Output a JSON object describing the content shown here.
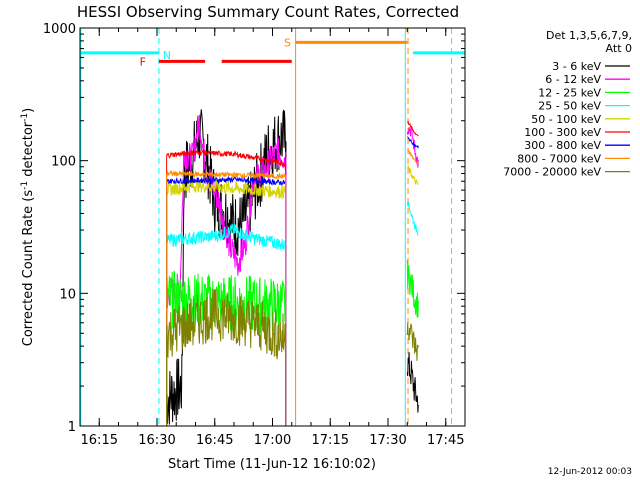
{
  "chart_data": {
    "type": "line",
    "title": "HESSI Observing Summary Count Rates, Corrected",
    "xlabel": "Start Time (11-Jun-12 16:10:02)",
    "ylabel_main": "Corrected Count Rate (s",
    "ylabel_sup1": "-1",
    "ylabel_mid": " detector",
    "ylabel_sup2": "-1",
    "ylabel_end": ")",
    "x_ticks": [
      "16:15",
      "16:30",
      "16:45",
      "17:00",
      "17:15",
      "17:30",
      "17:45"
    ],
    "x_tick_minutes": [
      5,
      20,
      35,
      50,
      65,
      80,
      95
    ],
    "xlim_minutes": [
      0,
      100
    ],
    "y_ticks": [
      "1",
      "10",
      "100",
      "1000"
    ],
    "y_tick_values": [
      1,
      10,
      100,
      1000
    ],
    "ylim": [
      1,
      1000
    ],
    "yscale": "log",
    "footer_date": "12-Jun-2012 00:03",
    "legend": {
      "header1": "Det 1,3,5,6,7,9,",
      "header2": "Att 0",
      "placement": "right of plot"
    },
    "series": [
      {
        "name": "3 - 6 keV",
        "color": "#000000",
        "base": 1.6,
        "noise": 0.25,
        "pts": [
          [
            22.5,
            1.6
          ],
          [
            26.5,
            2
          ],
          [
            27,
            80
          ],
          [
            29,
            100
          ],
          [
            31,
            160
          ],
          [
            33,
            100
          ],
          [
            35,
            50
          ],
          [
            38,
            40
          ],
          [
            40,
            33
          ],
          [
            42,
            33
          ],
          [
            44,
            45
          ],
          [
            47,
            80
          ],
          [
            49,
            120
          ],
          [
            52,
            150
          ],
          [
            53.5,
            140
          ],
          [
            53.6,
            1.5
          ]
        ],
        "post": [
          [
            85,
            3
          ],
          [
            86,
            2.5
          ],
          [
            87,
            1.8
          ],
          [
            88,
            1.5
          ]
        ]
      },
      {
        "name": "6 - 12 keV",
        "color": "#ff00ff",
        "base": 10,
        "noise": 0.12,
        "pts": [
          [
            22.5,
            10
          ],
          [
            26,
            11
          ],
          [
            27,
            120
          ],
          [
            29,
            100
          ],
          [
            31,
            200
          ],
          [
            33,
            80
          ],
          [
            35,
            60
          ],
          [
            37,
            40
          ],
          [
            39,
            22
          ],
          [
            41,
            17
          ],
          [
            43,
            24
          ],
          [
            45,
            70
          ],
          [
            48,
            85
          ],
          [
            51,
            115
          ],
          [
            53.5,
            105
          ],
          [
            53.6,
            8
          ]
        ],
        "post": [
          [
            85,
            180
          ],
          [
            86,
            170
          ],
          [
            87,
            120
          ],
          [
            88,
            90
          ]
        ]
      },
      {
        "name": "12 - 25 keV",
        "color": "#00ff00",
        "base": 9,
        "noise": 0.22,
        "pts": [
          [
            22.5,
            9
          ],
          [
            53.5,
            8
          ]
        ],
        "post": [
          [
            85,
            14
          ],
          [
            86,
            12
          ],
          [
            87,
            9
          ],
          [
            88,
            8
          ]
        ]
      },
      {
        "name": "25 - 50 keV",
        "color": "#00ffff",
        "base": 25,
        "noise": 0.05,
        "pts": [
          [
            22.5,
            25
          ],
          [
            35,
            27
          ],
          [
            40,
            30
          ],
          [
            45,
            26
          ],
          [
            53.5,
            23
          ]
        ],
        "post": [
          [
            85,
            50
          ],
          [
            86,
            40
          ],
          [
            87,
            32
          ],
          [
            88,
            28
          ]
        ]
      },
      {
        "name": "50 - 100 keV",
        "color": "#d4d400",
        "base": 60,
        "noise": 0.05,
        "pts": [
          [
            22.5,
            60
          ],
          [
            30,
            65
          ],
          [
            40,
            62
          ],
          [
            53.5,
            58
          ]
        ],
        "post": [
          [
            85,
            90
          ],
          [
            86,
            80
          ],
          [
            87,
            70
          ],
          [
            88,
            65
          ]
        ]
      },
      {
        "name": "100 - 300 keV",
        "color": "#ff0000",
        "base": 110,
        "noise": 0.02,
        "pts": [
          [
            22.5,
            110
          ],
          [
            30,
            115
          ],
          [
            40,
            112
          ],
          [
            53.5,
            95
          ]
        ],
        "post": [
          [
            85,
            200
          ],
          [
            86,
            180
          ],
          [
            87,
            160
          ],
          [
            88,
            150
          ]
        ]
      },
      {
        "name": "300 - 800 keV",
        "color": "#0000ff",
        "base": 70,
        "noise": 0.02,
        "pts": [
          [
            22.5,
            70
          ],
          [
            40,
            72
          ],
          [
            53.5,
            68
          ]
        ],
        "post": [
          [
            85,
            150
          ],
          [
            86,
            140
          ],
          [
            87,
            130
          ],
          [
            88,
            125
          ]
        ]
      },
      {
        "name": "800 - 7000 keV",
        "color": "#ff8c00",
        "base": 80,
        "noise": 0.02,
        "pts": [
          [
            22.5,
            80
          ],
          [
            40,
            78
          ],
          [
            53.5,
            76
          ]
        ],
        "post": [
          [
            85,
            120
          ],
          [
            86,
            110
          ],
          [
            87,
            100
          ],
          [
            88,
            95
          ]
        ]
      },
      {
        "name": "7000 - 20000 keV",
        "color": "#808000",
        "base": 5,
        "noise": 0.2,
        "pts": [
          [
            22.5,
            5
          ],
          [
            35,
            7
          ],
          [
            45,
            6
          ],
          [
            53.5,
            4.5
          ]
        ],
        "post": [
          [
            85,
            6
          ],
          [
            86,
            5
          ],
          [
            87,
            4
          ],
          [
            88,
            3.5
          ]
        ]
      }
    ],
    "flags": {
      "F_label": "F",
      "N_label": "N",
      "S_label": "S",
      "F_color": "#ff0000",
      "N_color": "#00ffff",
      "S_color": "#ff8c00",
      "F_segments": [
        [
          20.5,
          32.5
        ],
        [
          36.8,
          55
        ]
      ],
      "N_segments": [
        [
          0,
          20.5
        ],
        [
          86.5,
          100
        ]
      ],
      "S_segments": [
        [
          56,
          85
        ]
      ],
      "N_level": 650,
      "S_level": 780,
      "F_level": 560
    },
    "vlines": [
      {
        "minute": 0.2,
        "color": "#00ffff",
        "style": "solid"
      },
      {
        "minute": 20.5,
        "color": "#00ffff",
        "style": "dashed"
      },
      {
        "minute": 56,
        "color": "#ff8c00",
        "style": "solid"
      },
      {
        "minute": 84.5,
        "color": "#00ffff",
        "style": "solid"
      },
      {
        "minute": 85.2,
        "color": "#ff8c00",
        "style": "dashed"
      },
      {
        "minute": 96.5,
        "color": "#00ffff",
        "style": "dashed"
      }
    ]
  }
}
